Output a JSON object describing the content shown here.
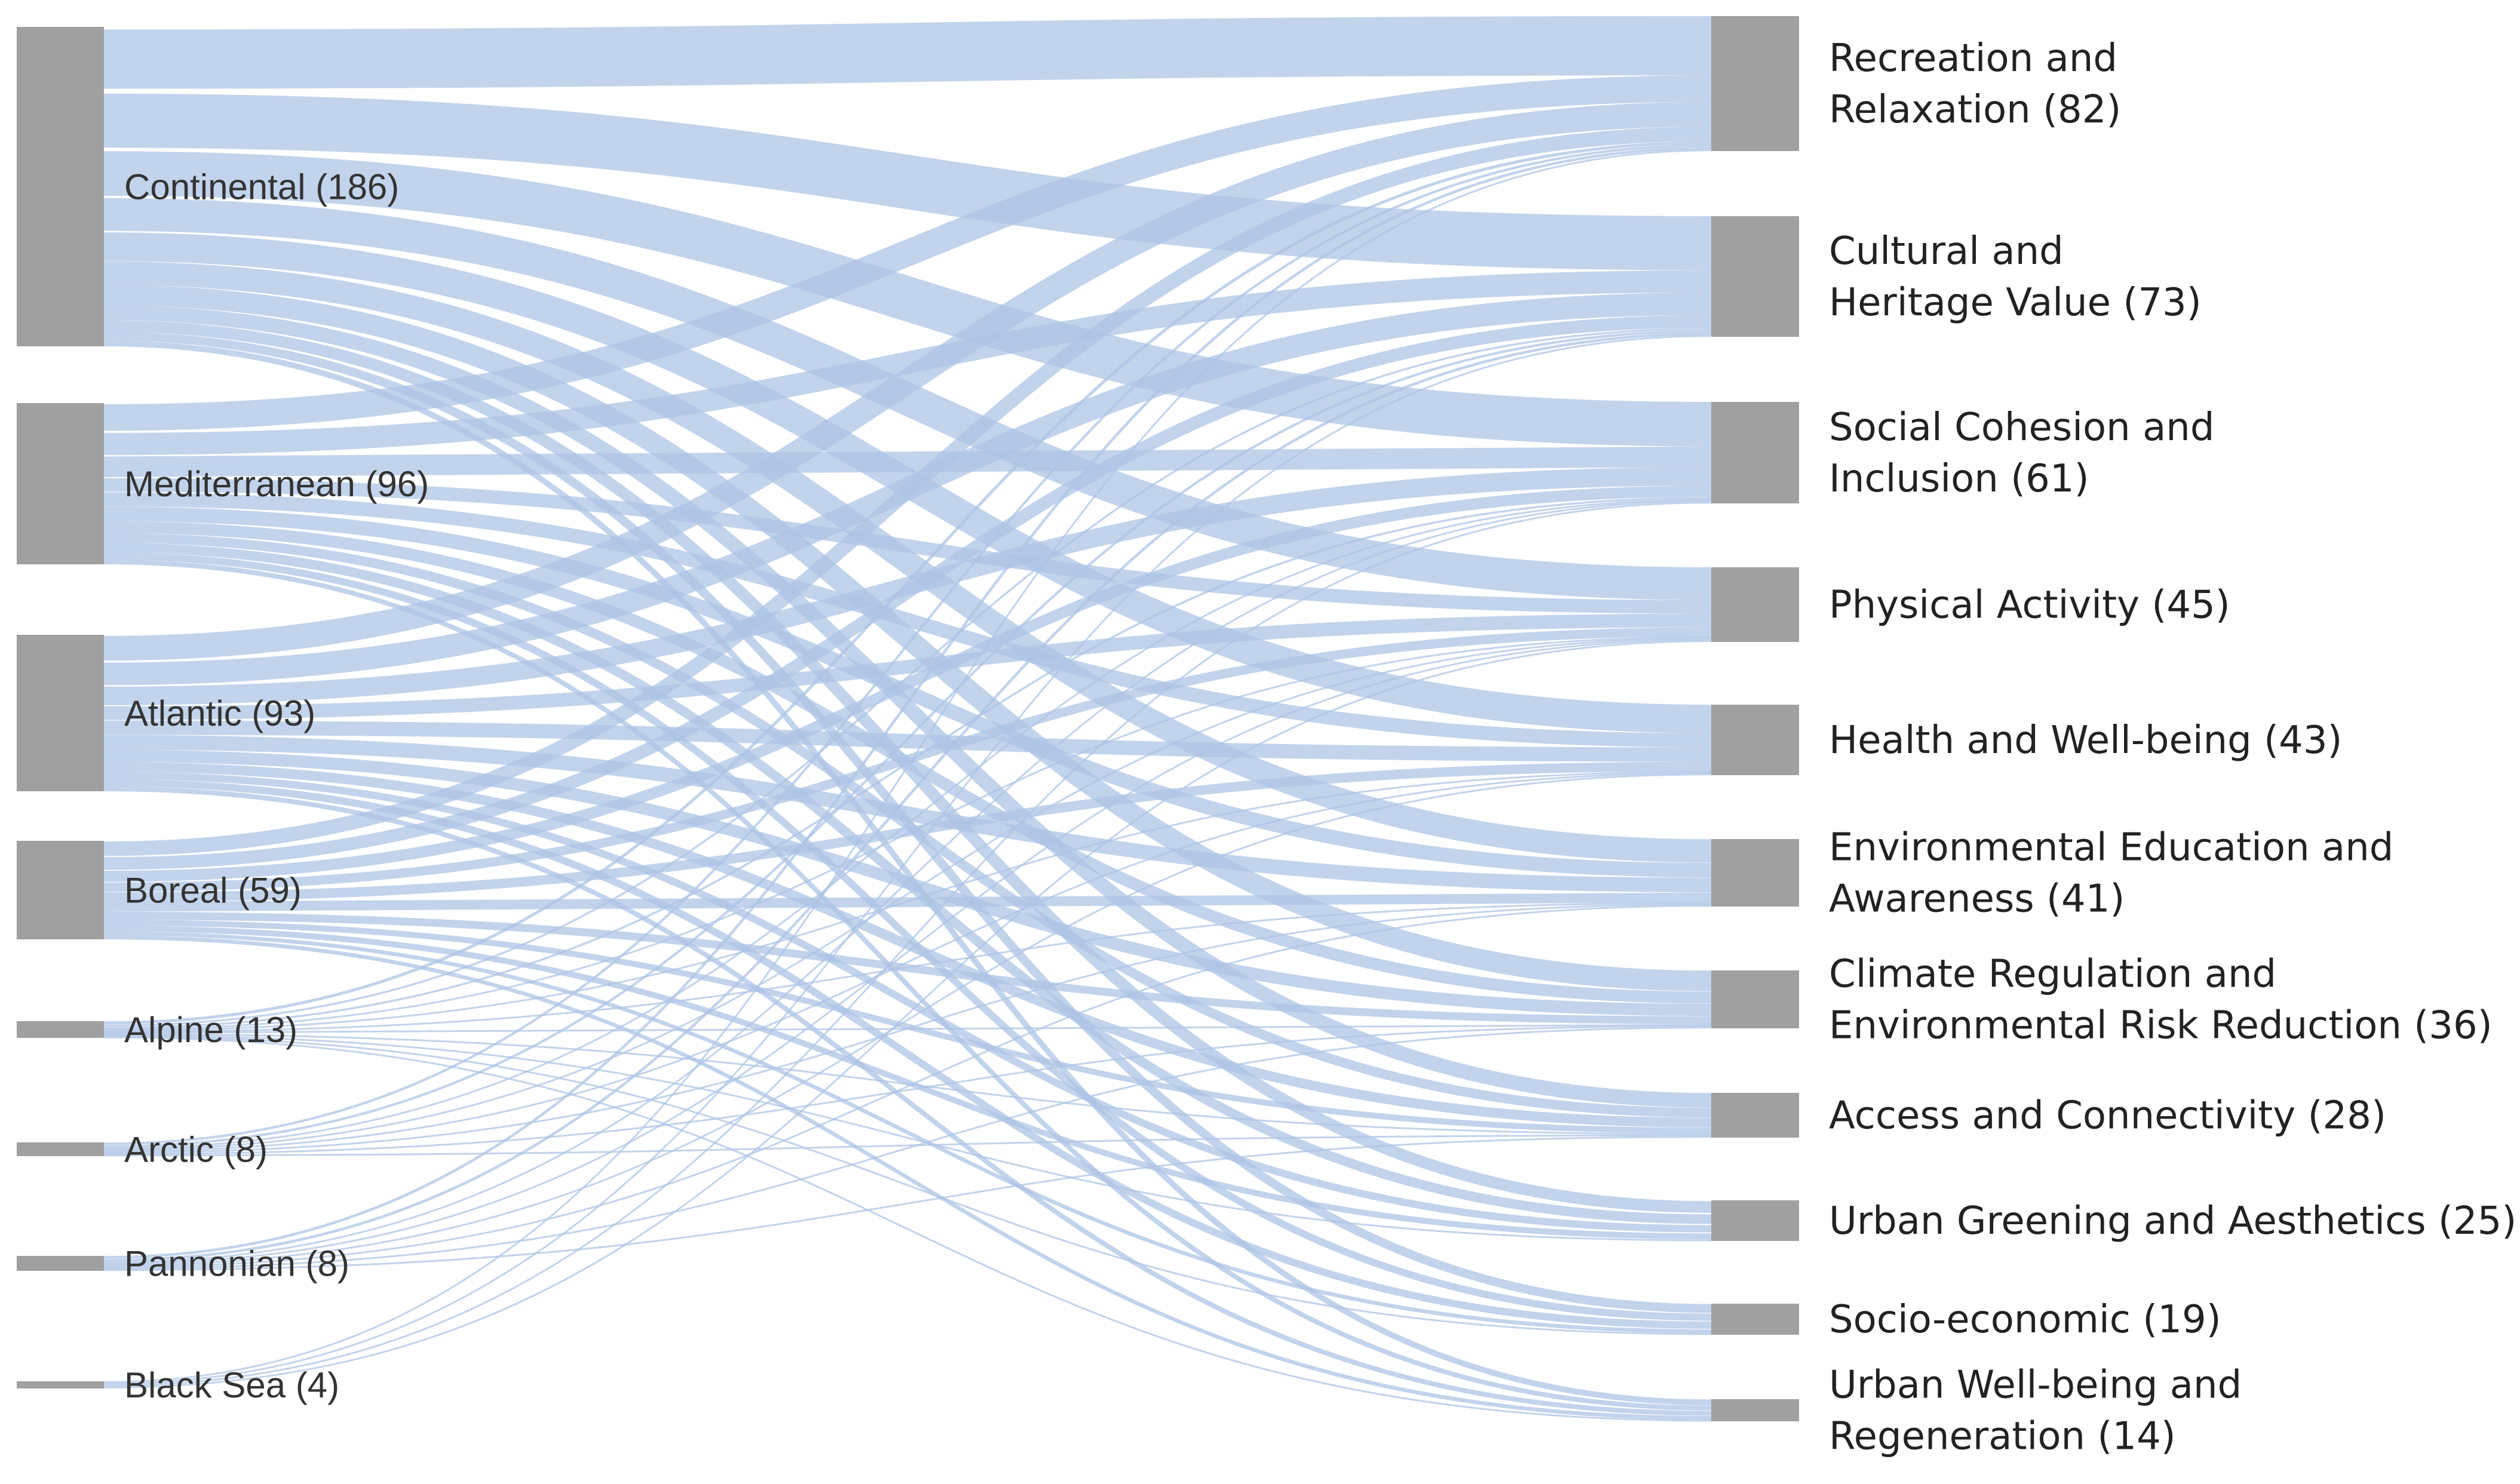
{
  "sources": [
    {
      "id": "continental",
      "label": "Continental (186)",
      "value": 186
    },
    {
      "id": "mediterranean",
      "label": "Mediterranean (96)",
      "value": 96
    },
    {
      "id": "atlantic",
      "label": "Atlantic (93)",
      "value": 93
    },
    {
      "id": "boreal",
      "label": "Boreal (59)",
      "value": 59
    },
    {
      "id": "alpine",
      "label": "Alpine (13)",
      "value": 13
    },
    {
      "id": "arctic",
      "label": "Arctic (8)",
      "value": 8
    },
    {
      "id": "pannonian",
      "label": "Pannonian (8)",
      "value": 8
    },
    {
      "id": "black-sea",
      "label": "Black Sea (4)",
      "value": 4
    }
  ],
  "targets": [
    {
      "id": "recreation",
      "label_lines": [
        "Recreation and",
        "Relaxation (82)"
      ],
      "value": 82
    },
    {
      "id": "cultural",
      "label_lines": [
        "Cultural and",
        "Heritage Value (73)"
      ],
      "value": 73
    },
    {
      "id": "social",
      "label_lines": [
        "Social Cohesion and",
        "Inclusion (61)"
      ],
      "value": 61
    },
    {
      "id": "physical",
      "label_lines": [
        "Physical Activity (45)"
      ],
      "value": 45
    },
    {
      "id": "health",
      "label_lines": [
        "Health and Well-being (43)"
      ],
      "value": 43
    },
    {
      "id": "education",
      "label_lines": [
        "Environmental Education and",
        "Awareness (41)"
      ],
      "value": 41
    },
    {
      "id": "climate",
      "label_lines": [
        "Climate Regulation and",
        "Environmental Risk Reduction (36)"
      ],
      "value": 36
    },
    {
      "id": "access",
      "label_lines": [
        "Access and Connectivity (28)"
      ],
      "value": 28
    },
    {
      "id": "greening",
      "label_lines": [
        "Urban Greening and Aesthetics (25)"
      ],
      "value": 25
    },
    {
      "id": "socio",
      "label_lines": [
        "Socio-economic (19)"
      ],
      "value": 19
    },
    {
      "id": "wellbeing",
      "label_lines": [
        "Urban Well-being and",
        "Regeneration (14)"
      ],
      "value": 14
    }
  ],
  "colors": {
    "node": "#a0a0a0",
    "link": "#aec4e6"
  }
}
